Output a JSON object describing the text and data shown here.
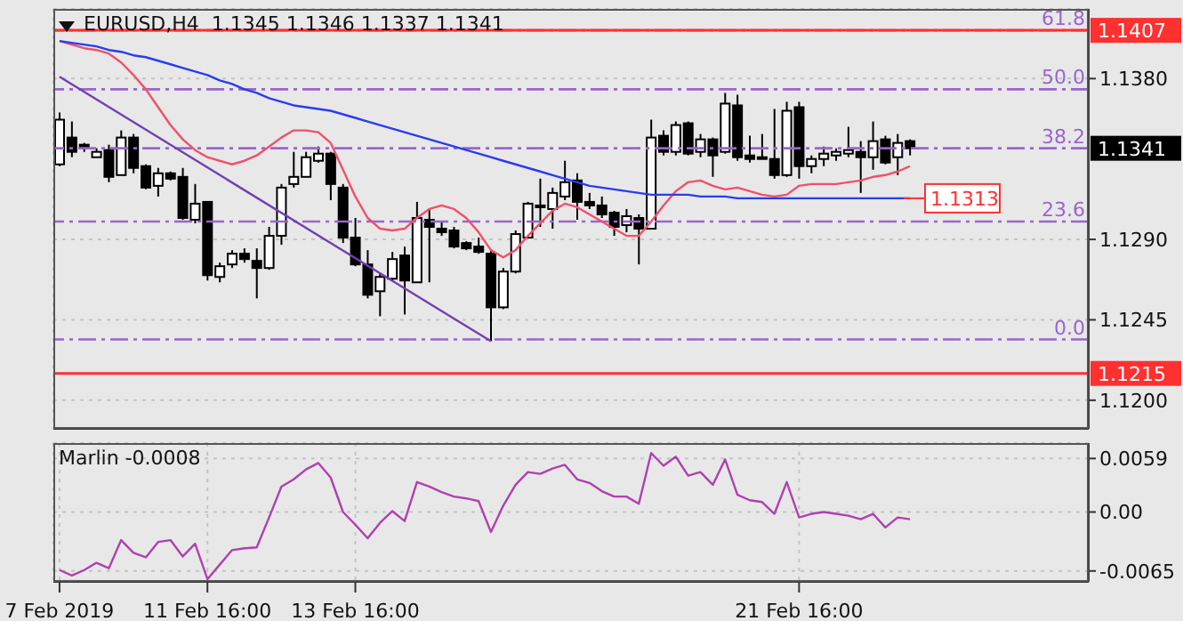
{
  "chart_data": [
    {
      "type": "candlestick",
      "title": "EURUSD,H4  1.1345 1.1346 1.1337 1.1341",
      "categories": [
        null,
        null,
        null,
        null,
        null,
        null,
        null,
        null,
        null,
        null,
        null,
        null,
        null,
        null,
        null,
        null,
        null,
        null,
        null,
        null,
        null,
        null,
        null,
        null,
        null,
        null,
        null,
        null,
        null,
        null,
        null,
        null,
        null,
        null,
        null,
        null,
        null,
        null,
        null,
        null,
        null,
        null,
        null,
        null,
        null,
        null,
        null,
        null,
        null,
        null,
        null,
        null,
        null,
        null,
        null,
        null,
        null,
        null,
        null,
        null,
        null,
        null,
        null,
        null,
        null,
        null,
        null,
        null,
        null,
        null,
        null,
        null,
        null,
        null,
        null,
        null,
        null,
        null,
        null,
        null,
        null,
        null,
        null,
        null
      ],
      "ohlc": [
        [
          1.1332,
          1.1361,
          1.1331,
          1.1357
        ],
        [
          1.1347,
          1.1356,
          1.1336,
          1.1339
        ],
        [
          1.1343,
          1.1344,
          1.1339,
          1.1341
        ],
        [
          1.1336,
          1.1341,
          1.1336,
          1.1339
        ],
        [
          1.134,
          1.1343,
          1.1322,
          1.1325
        ],
        [
          1.1326,
          1.1351,
          1.1326,
          1.1347
        ],
        [
          1.1347,
          1.1349,
          1.1327,
          1.133
        ],
        [
          1.1331,
          1.1332,
          1.1318,
          1.1319
        ],
        [
          1.132,
          1.133,
          1.1314,
          1.1327
        ],
        [
          1.1327,
          1.1328,
          1.1323,
          1.1324
        ],
        [
          1.1325,
          1.133,
          1.1301,
          1.1302
        ],
        [
          1.1301,
          1.1321,
          1.1299,
          1.131
        ],
        [
          1.1311,
          1.1311,
          1.1267,
          1.127
        ],
        [
          1.1269,
          1.1277,
          1.1266,
          1.1275
        ],
        [
          1.1276,
          1.1284,
          1.1274,
          1.1282
        ],
        [
          1.1282,
          1.1285,
          1.1277,
          1.1279
        ],
        [
          1.1278,
          1.1285,
          1.1257,
          1.1274
        ],
        [
          1.1274,
          1.1297,
          1.1273,
          1.1292
        ],
        [
          1.1292,
          1.1321,
          1.1287,
          1.1319
        ],
        [
          1.1321,
          1.1339,
          1.1319,
          1.1325
        ],
        [
          1.1325,
          1.1339,
          1.1325,
          1.1336
        ],
        [
          1.1334,
          1.1342,
          1.1333,
          1.1338
        ],
        [
          1.1338,
          1.1339,
          1.1312,
          1.1321
        ],
        [
          1.1319,
          1.1321,
          1.1288,
          1.1291
        ],
        [
          1.1291,
          1.1302,
          1.1275,
          1.1276
        ],
        [
          1.1276,
          1.1284,
          1.1257,
          1.1259
        ],
        [
          1.1261,
          1.1271,
          1.1247,
          1.1269
        ],
        [
          1.1268,
          1.1283,
          1.1267,
          1.1279
        ],
        [
          1.1281,
          1.1286,
          1.1248,
          1.1267
        ],
        [
          1.1266,
          1.1311,
          1.1266,
          1.1302
        ],
        [
          1.1301,
          1.1307,
          1.1266,
          1.1297
        ],
        [
          1.1296,
          1.13,
          1.1292,
          1.1294
        ],
        [
          1.1295,
          1.1297,
          1.1285,
          1.1286
        ],
        [
          1.1288,
          1.1289,
          1.1284,
          1.1285
        ],
        [
          1.1286,
          1.1291,
          1.1282,
          1.1283
        ],
        [
          1.1282,
          1.1284,
          1.1233,
          1.1252
        ],
        [
          1.1252,
          1.1274,
          1.1251,
          1.1272
        ],
        [
          1.1272,
          1.1295,
          1.1271,
          1.1293
        ],
        [
          1.1291,
          1.1311,
          1.1291,
          1.131
        ],
        [
          1.1308,
          1.1324,
          1.1297,
          1.1309
        ],
        [
          1.1307,
          1.1319,
          1.1296,
          1.1316
        ],
        [
          1.1314,
          1.1334,
          1.1312,
          1.1322
        ],
        [
          1.1323,
          1.1327,
          1.1301,
          1.1311
        ],
        [
          1.1311,
          1.1316,
          1.1307,
          1.1309
        ],
        [
          1.1309,
          1.1314,
          1.1302,
          1.1304
        ],
        [
          1.1305,
          1.1306,
          1.1292,
          1.1297
        ],
        [
          1.1298,
          1.1307,
          1.1294,
          1.1303
        ],
        [
          1.1302,
          1.1304,
          1.1276,
          1.1296
        ],
        [
          1.1296,
          1.1357,
          1.1296,
          1.1347
        ],
        [
          1.1348,
          1.1351,
          1.1337,
          1.1339
        ],
        [
          1.1339,
          1.1356,
          1.1337,
          1.1354
        ],
        [
          1.1355,
          1.1356,
          1.1337,
          1.1338
        ],
        [
          1.1339,
          1.1349,
          1.1336,
          1.1346
        ],
        [
          1.1346,
          1.1347,
          1.1325,
          1.1337
        ],
        [
          1.1339,
          1.1372,
          1.1338,
          1.1366
        ],
        [
          1.1365,
          1.1371,
          1.1334,
          1.1336
        ],
        [
          1.1337,
          1.1348,
          1.1333,
          1.1335
        ],
        [
          1.1336,
          1.1349,
          1.1335,
          1.1336
        ],
        [
          1.1335,
          1.1363,
          1.1324,
          1.1326
        ],
        [
          1.1326,
          1.1367,
          1.1325,
          1.1362
        ],
        [
          1.1364,
          1.1367,
          1.1324,
          1.1331
        ],
        [
          1.1331,
          1.1337,
          1.1327,
          1.1335
        ],
        [
          1.1335,
          1.1342,
          1.1331,
          1.1338
        ],
        [
          1.1337,
          1.1341,
          1.1334,
          1.1339
        ],
        [
          1.1338,
          1.1353,
          1.1336,
          1.134
        ],
        [
          1.1339,
          1.1345,
          1.1316,
          1.1336
        ],
        [
          1.1336,
          1.1356,
          1.1329,
          1.1345
        ],
        [
          1.1346,
          1.1348,
          1.1332,
          1.1333
        ],
        [
          1.1336,
          1.1349,
          1.1326,
          1.1344
        ],
        [
          1.1345,
          1.1346,
          1.1337,
          1.1341
        ],
        null,
        null,
        null,
        null,
        null,
        null,
        null,
        null,
        null,
        null,
        null,
        null,
        null,
        null
      ],
      "series": [
        {
          "type": "line",
          "color": "#f0506a",
          "values": [
            1.1401,
            1.1399,
            1.1397,
            1.1396,
            1.1394,
            1.1389,
            1.1382,
            1.1374,
            1.1364,
            1.1354,
            1.1346,
            1.134,
            1.1336,
            1.1334,
            1.1332,
            1.1334,
            1.1337,
            1.1342,
            1.1347,
            1.1351,
            1.1351,
            1.135,
            1.1344,
            1.1329,
            1.1314,
            1.1302,
            1.1296,
            1.1295,
            1.1296,
            1.1302,
            1.1307,
            1.1309,
            1.1307,
            1.1302,
            1.1294,
            1.1284,
            1.128,
            1.1284,
            1.1292,
            1.1299,
            1.1306,
            1.131,
            1.1308,
            1.1304,
            1.13,
            1.1296,
            1.1292,
            1.1292,
            1.13,
            1.1309,
            1.1317,
            1.1322,
            1.1323,
            1.132,
            1.1318,
            1.1319,
            1.1317,
            1.1315,
            1.1314,
            1.1315,
            1.132,
            1.1321,
            1.1321,
            1.1321,
            1.1322,
            1.1323,
            1.1325,
            1.1326,
            1.1328,
            1.1331,
            null,
            null,
            null,
            null,
            null,
            null,
            null,
            null,
            null,
            null,
            null,
            null,
            null,
            null
          ]
        },
        {
          "type": "line",
          "color": "#2a3cf0",
          "values": [
            1.1401,
            1.14,
            1.1399,
            1.1398,
            1.1396,
            1.1395,
            1.1393,
            1.1392,
            1.139,
            1.1388,
            1.1386,
            1.1384,
            1.1382,
            1.1379,
            1.1377,
            1.1374,
            1.1372,
            1.1369,
            1.1367,
            1.1365,
            1.1364,
            1.1363,
            1.1362,
            1.136,
            1.1358,
            1.1356,
            1.1354,
            1.1352,
            1.135,
            1.1348,
            1.1346,
            1.1344,
            1.1342,
            1.134,
            1.1338,
            1.1336,
            1.1334,
            1.1332,
            1.133,
            1.1328,
            1.1326,
            1.1324,
            1.1322,
            1.132,
            1.1319,
            1.1318,
            1.1317,
            1.1316,
            1.1315,
            1.1315,
            1.1315,
            1.1315,
            1.1314,
            1.1314,
            1.1314,
            1.1313,
            1.1313,
            1.1313,
            1.1313,
            1.1313,
            1.1313,
            1.1313,
            1.1313,
            1.1313,
            1.1313,
            1.1313,
            1.1313,
            1.1313,
            1.1313,
            1.1313,
            null,
            null,
            null,
            null,
            null,
            null,
            null,
            null,
            null,
            null,
            null,
            null,
            null,
            null
          ]
        },
        {
          "type": "line",
          "color": "#7040b0",
          "values": [
            1.1381,
            null,
            null,
            null,
            null,
            null,
            null,
            null,
            null,
            null,
            null,
            null,
            null,
            null,
            null,
            null,
            null,
            null,
            null,
            null,
            null,
            null,
            null,
            null,
            null,
            null,
            null,
            null,
            null,
            null,
            null,
            null,
            null,
            null,
            null,
            1.1233,
            null,
            null,
            null,
            null,
            null,
            null,
            null,
            null,
            null,
            null,
            null,
            null,
            null,
            null,
            null,
            null,
            null,
            null,
            null,
            null,
            null,
            null,
            null,
            null,
            null,
            null,
            null,
            null,
            null,
            null,
            null,
            null,
            null,
            null,
            null,
            null,
            null,
            null,
            null,
            null,
            null,
            null,
            null,
            null,
            null,
            null,
            null,
            null
          ]
        }
      ],
      "ylim": [
        1.1184,
        1.1419
      ],
      "yticks": [
        {
          "value": 1.138,
          "label": "1.1380"
        },
        {
          "value": 1.129,
          "label": "1.1290"
        },
        {
          "value": 1.1245,
          "label": "1.1245"
        },
        {
          "value": 1.12,
          "label": "1.1200"
        }
      ],
      "tick_labels": "y",
      "grid": true,
      "ref_lines": [
        {
          "axis": "y",
          "value": 1.1407,
          "color": "#9966cc",
          "line_style": "dashed"
        },
        {
          "axis": "y",
          "value": 1.1374,
          "color": "#9966cc",
          "line_style": "dashed"
        },
        {
          "axis": "y",
          "value": 1.1341,
          "color": "#9966cc",
          "line_style": "dashed"
        },
        {
          "axis": "y",
          "value": 1.13,
          "color": "#9966cc",
          "line_style": "dashed"
        },
        {
          "axis": "y",
          "value": 1.1234,
          "color": "#9966cc",
          "line_style": "dashed"
        },
        {
          "axis": "y",
          "value": 1.1407,
          "label": "1.1407",
          "color": "#ff3030",
          "line_style": "solid"
        },
        {
          "axis": "y",
          "value": 1.1215,
          "label": "1.1215",
          "color": "#ff3030",
          "line_style": "solid"
        }
      ],
      "annotations": [
        "1.1341",
        {
          "text": "1.1313",
          "y": 1.1313
        },
        {
          "text": "61.8",
          "y": 1.1407
        },
        {
          "text": "50.0",
          "y": 1.1374
        },
        {
          "text": "38.2",
          "y": 1.1341
        },
        {
          "text": "23.6",
          "y": 1.13
        },
        {
          "text": "0.0",
          "y": 1.1234
        }
      ]
    },
    {
      "type": "line",
      "title": "Marlin -0.0008",
      "categories": [
        "7 Feb 2019",
        null,
        null,
        null,
        null,
        null,
        null,
        null,
        null,
        null,
        null,
        null,
        "11 Feb 16:00",
        null,
        null,
        null,
        null,
        null,
        null,
        null,
        null,
        null,
        null,
        null,
        "13 Feb 16:00",
        null,
        null,
        null,
        null,
        null,
        null,
        null,
        null,
        null,
        null,
        null,
        null,
        null,
        null,
        null,
        null,
        null,
        null,
        null,
        null,
        null,
        null,
        null,
        null,
        null,
        null,
        null,
        null,
        null,
        null,
        null,
        null,
        null,
        null,
        null,
        "21 Feb 16:00",
        null,
        null,
        null,
        null,
        null,
        null,
        null,
        null,
        null,
        null,
        null,
        null,
        null,
        null,
        null,
        null,
        null,
        null,
        null,
        null,
        null,
        null,
        null
      ],
      "series": [
        {
          "color": "#b040b0",
          "values": [
            -0.0064,
            -0.007,
            -0.0064,
            -0.0056,
            -0.0062,
            -0.0031,
            -0.0045,
            -0.005,
            -0.0033,
            -0.0031,
            -0.0049,
            -0.0035,
            -0.0074,
            -0.0058,
            -0.0042,
            -0.004,
            -0.0039,
            -0.0006,
            0.0028,
            0.0036,
            0.0047,
            0.0054,
            0.0038,
            0.0,
            -0.0014,
            -0.0029,
            -0.0012,
            0.0001,
            -0.001,
            0.0033,
            0.0028,
            0.0022,
            0.0017,
            0.0015,
            0.0012,
            -0.0022,
            0.0007,
            0.003,
            0.0044,
            0.0042,
            0.0048,
            0.0052,
            0.0036,
            0.0032,
            0.0023,
            0.0017,
            0.0017,
            0.0009,
            0.0065,
            0.0051,
            0.0061,
            0.004,
            0.0044,
            0.003,
            0.0058,
            0.0019,
            0.0013,
            0.0011,
            -0.0002,
            0.0033,
            -0.0006,
            -0.0002,
            0.0,
            -0.0002,
            -0.0004,
            -0.0008,
            -0.0002,
            -0.0017,
            -0.0006,
            -0.0008,
            null,
            null,
            null,
            null,
            null,
            null,
            null,
            null,
            null,
            null,
            null,
            null,
            null,
            null
          ]
        }
      ],
      "ylim": [
        -0.0077,
        0.0076
      ],
      "yticks": [
        0.0059,
        {
          "value": 0,
          "label": "0.00"
        },
        -0.0065
      ],
      "grid": true
    }
  ]
}
